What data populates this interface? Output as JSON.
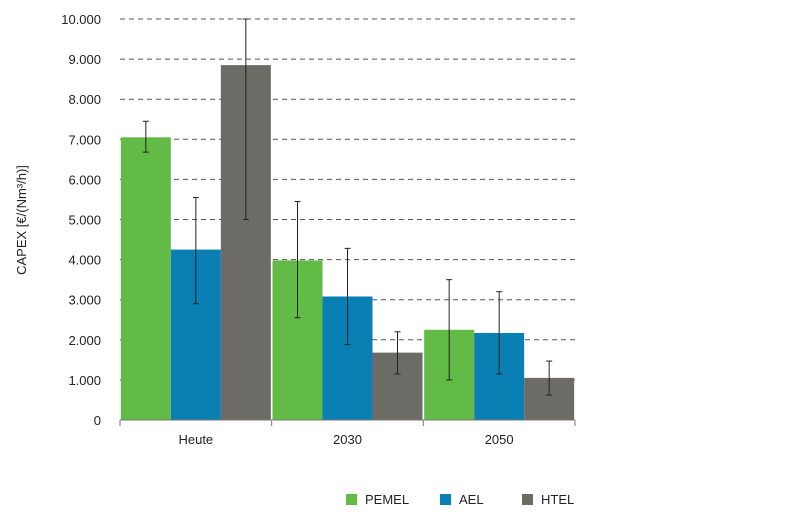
{
  "chart_data": {
    "type": "bar",
    "title": "",
    "xlabel": "",
    "ylabel": "CAPEX [€/(Nm³/h)]",
    "ylim": [
      0,
      10000
    ],
    "yticks": [
      0,
      1000,
      2000,
      3000,
      4000,
      5000,
      6000,
      7000,
      8000,
      9000,
      10000
    ],
    "ytick_labels": [
      "0",
      "1.000",
      "2.000",
      "3.000",
      "4.000",
      "5.000",
      "6.000",
      "7.000",
      "8.000",
      "9.000",
      "10.000"
    ],
    "categories": [
      "Heute",
      "2030",
      "2050"
    ],
    "grid": "horizontal dashed",
    "legend_position": "bottom",
    "series": [
      {
        "name": "PEMEL",
        "color": "#62bb46",
        "values": [
          7050,
          3980,
          2250
        ],
        "err_low": [
          6680,
          2550,
          1000
        ],
        "err_high": [
          7450,
          5450,
          3500
        ]
      },
      {
        "name": "AEL",
        "color": "#0a7fb4",
        "values": [
          4250,
          3080,
          2170
        ],
        "err_low": [
          2900,
          1880,
          1150
        ],
        "err_high": [
          5550,
          4280,
          3200
        ]
      },
      {
        "name": "HTEL",
        "color": "#6d6b66",
        "values": [
          8850,
          1680,
          1050
        ],
        "err_low": [
          5000,
          1150,
          620
        ],
        "err_high": [
          10000,
          2200,
          1470
        ]
      }
    ]
  }
}
